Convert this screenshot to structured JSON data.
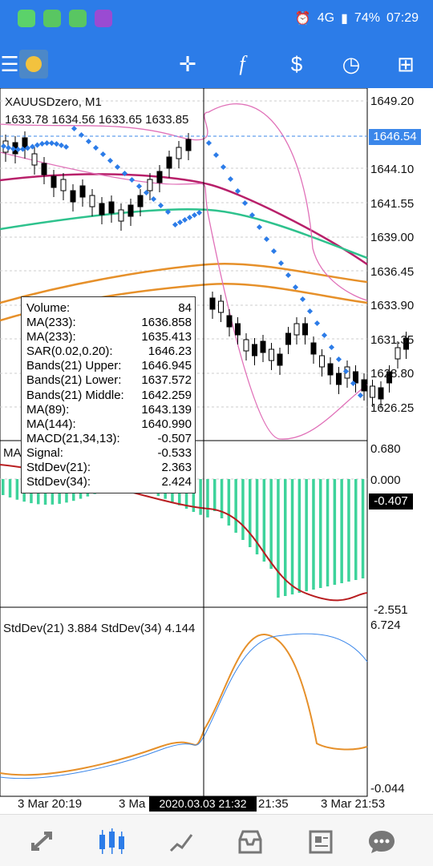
{
  "status_bar": {
    "battery": "74%",
    "time": "07:29",
    "network": "4G"
  },
  "toolbar": {
    "items": [
      {
        "name": "menu-icon"
      },
      {
        "name": "app-logo"
      },
      {
        "name": "crosshair-icon"
      },
      {
        "name": "indicators-icon"
      },
      {
        "name": "trade-icon"
      },
      {
        "name": "timeframe-icon"
      },
      {
        "name": "add-object-icon"
      }
    ]
  },
  "chart": {
    "symbol": "XAUUSDzero, M1",
    "ohlc": "1633.78 1634.56 1633.65 1633.85",
    "price_axis": [
      "1649.20",
      "1644.10",
      "1641.55",
      "1639.00",
      "1636.45",
      "1633.90",
      "1631.35",
      "1628.80",
      "1626.25"
    ],
    "current_price": "1646.54",
    "macd_axis": {
      "top": "0.680",
      "zero": "0.000",
      "bottom": "-2.551",
      "current": "-0.407"
    },
    "stddev_axis": {
      "top": "6.724",
      "bottom": "-0.044"
    },
    "macd_label": "MA",
    "stddev_label": "StdDev(21) 3.884 StdDev(34) 4.144",
    "time_axis": {
      "left": "3 Mar 20:19",
      "mid": "3 Ma",
      "cursor": "2020.03.03 21:32",
      "after": "21:35",
      "right": "3 Mar 21:53"
    }
  },
  "info_box": {
    "rows": [
      {
        "label": "Volume:",
        "value": "84"
      },
      {
        "label": "MA(233):",
        "value": "1636.858"
      },
      {
        "label": "MA(233):",
        "value": "1635.413"
      },
      {
        "label": "SAR(0.02,0.20):",
        "value": "1646.23"
      },
      {
        "label": "Bands(21) Upper:",
        "value": "1646.945"
      },
      {
        "label": "Bands(21) Lower:",
        "value": "1637.572"
      },
      {
        "label": "Bands(21) Middle:",
        "value": "1642.259"
      },
      {
        "label": "MA(89):",
        "value": "1643.139"
      },
      {
        "label": "MA(144):",
        "value": "1640.990"
      },
      {
        "label": "MACD(21,34,13):",
        "value": "-0.507"
      },
      {
        "label": "Signal:",
        "value": "-0.533"
      },
      {
        "label": "StdDev(21):",
        "value": "2.363"
      },
      {
        "label": "StdDev(34):",
        "value": "2.424"
      }
    ]
  },
  "bottom_nav": [
    {
      "name": "quotes-icon"
    },
    {
      "name": "chart-icon"
    },
    {
      "name": "trade-nav-icon"
    },
    {
      "name": "history-icon"
    },
    {
      "name": "news-icon"
    },
    {
      "name": "messages-icon"
    }
  ],
  "colors": {
    "accent": "#2c7ce8",
    "macd_bar": "#3dd39b",
    "signal": "#b81d20",
    "sar": "#2c7ce8",
    "ma89": "#b8206a",
    "ma144": "#2ec28d",
    "ma233": "#e6902a",
    "bands": "#e070b8"
  }
}
